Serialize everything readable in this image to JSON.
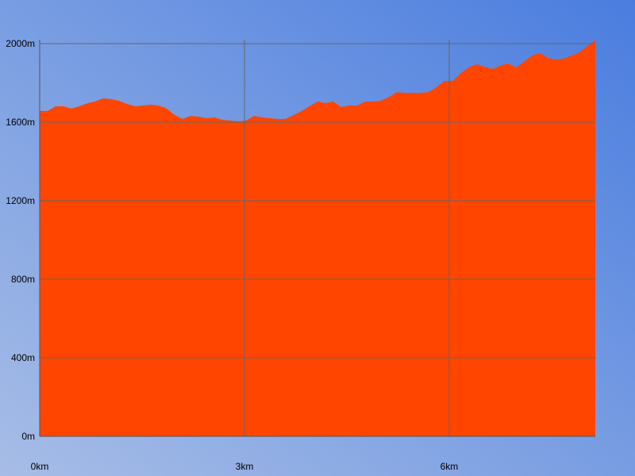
{
  "chart_data": {
    "type": "area",
    "x": [
      0,
      0.12,
      0.23,
      0.35,
      0.47,
      0.58,
      0.7,
      0.81,
      0.93,
      1.05,
      1.16,
      1.28,
      1.4,
      1.51,
      1.63,
      1.74,
      1.86,
      1.98,
      2.09,
      2.21,
      2.33,
      2.44,
      2.56,
      2.67,
      2.79,
      2.91,
      3.02,
      3.14,
      3.26,
      3.37,
      3.49,
      3.6,
      3.72,
      3.84,
      3.95,
      4.07,
      4.19,
      4.3,
      4.42,
      4.53,
      4.65,
      4.77,
      4.88,
      5.0,
      5.12,
      5.23,
      5.35,
      5.47,
      5.58,
      5.7,
      5.81,
      5.93,
      6.05,
      6.16,
      6.28,
      6.4,
      6.51,
      6.63,
      6.74,
      6.86,
      6.98,
      7.09,
      7.21,
      7.33,
      7.44,
      7.56,
      7.67,
      7.79,
      7.91,
      8.02,
      8.14
    ],
    "values": [
      1657,
      1657,
      1681,
      1681,
      1669,
      1681,
      1697,
      1705,
      1721,
      1717,
      1709,
      1693,
      1681,
      1685,
      1689,
      1685,
      1669,
      1636,
      1616,
      1632,
      1628,
      1620,
      1624,
      1612,
      1608,
      1604,
      1608,
      1632,
      1624,
      1620,
      1616,
      1616,
      1636,
      1657,
      1681,
      1705,
      1697,
      1705,
      1677,
      1685,
      1685,
      1705,
      1705,
      1709,
      1729,
      1753,
      1749,
      1749,
      1749,
      1753,
      1778,
      1810,
      1810,
      1846,
      1879,
      1895,
      1883,
      1870,
      1887,
      1899,
      1879,
      1907,
      1939,
      1952,
      1927,
      1919,
      1923,
      1939,
      1956,
      1988,
      2016
    ],
    "color": "#ff4500",
    "xlim": [
      0,
      8.14
    ],
    "ylim": [
      0,
      2000
    ],
    "xticks": [
      {
        "value": 0,
        "label": "0km"
      },
      {
        "value": 3,
        "label": "3km"
      },
      {
        "value": 6,
        "label": "6km"
      }
    ],
    "yticks": [
      {
        "value": 0,
        "label": "0m"
      },
      {
        "value": 400,
        "label": "400m"
      },
      {
        "value": 800,
        "label": "800m"
      },
      {
        "value": 1200,
        "label": "1200m"
      },
      {
        "value": 1600,
        "label": "1600m"
      },
      {
        "value": 2000,
        "label": "2000m"
      }
    ],
    "grid": true
  }
}
